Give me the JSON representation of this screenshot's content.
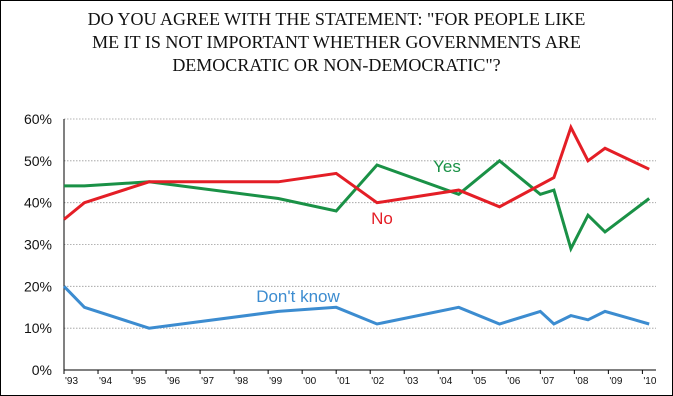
{
  "chart_data": {
    "type": "line",
    "title_lines": [
      "DO YOU AGREE WITH THE STATEMENT: \"FOR PEOPLE LIKE",
      "ME IT IS NOT IMPORTANT WHETHER GOVERNMENTS ARE",
      "DEMOCRATIC OR NON-DEMOCRATIC\"?"
    ],
    "ylim": [
      0,
      60
    ],
    "yticks": [
      0,
      10,
      20,
      30,
      40,
      50,
      60
    ],
    "ytick_labels": [
      "0%",
      "10%",
      "20%",
      "30%",
      "40%",
      "50%",
      "60%"
    ],
    "xlim": [
      1993,
      2010.4
    ],
    "xticks": [
      1993,
      1994,
      1995,
      1996,
      1997,
      1998,
      1999,
      2000,
      2001,
      2002,
      2003,
      2004,
      2005,
      2006,
      2007,
      2008,
      2009,
      2010
    ],
    "xtick_labels": [
      "'93",
      "'94",
      "'95",
      "'96",
      "'97",
      "'98",
      "'99",
      "'00",
      "'01",
      "'02",
      "'03",
      "'04",
      "'05",
      "'06",
      "'07",
      "'08",
      "'09",
      "'10"
    ],
    "grid": true,
    "series": [
      {
        "name": "Yes",
        "color": "#1a9146",
        "x": [
          1993.0,
          1993.6,
          1995.5,
          1999.3,
          2001.0,
          2002.2,
          2004.6,
          2005.8,
          2007.0,
          2007.4,
          2007.9,
          2008.4,
          2008.9,
          2010.2
        ],
        "y": [
          44,
          44,
          45,
          41,
          38,
          49,
          42,
          50,
          42,
          43,
          29,
          37,
          33,
          41
        ]
      },
      {
        "name": "No",
        "color": "#e41e26",
        "x": [
          1993.0,
          1993.6,
          1995.5,
          1999.3,
          2001.0,
          2002.2,
          2004.6,
          2005.8,
          2007.4,
          2007.9,
          2008.4,
          2008.9,
          2010.2
        ],
        "y": [
          36,
          40,
          45,
          45,
          47,
          40,
          43,
          39,
          46,
          58,
          50,
          53,
          48
        ]
      },
      {
        "name": "Don't know",
        "color": "#3c8cd0",
        "x": [
          1993.0,
          1993.6,
          1995.5,
          1999.3,
          2001.0,
          2002.2,
          2004.6,
          2005.8,
          2007.0,
          2007.4,
          2007.9,
          2008.4,
          2008.9,
          2010.2
        ],
        "y": [
          20,
          15,
          10,
          14,
          15,
          11,
          15,
          11,
          14,
          11,
          13,
          12,
          14,
          11
        ]
      }
    ]
  }
}
